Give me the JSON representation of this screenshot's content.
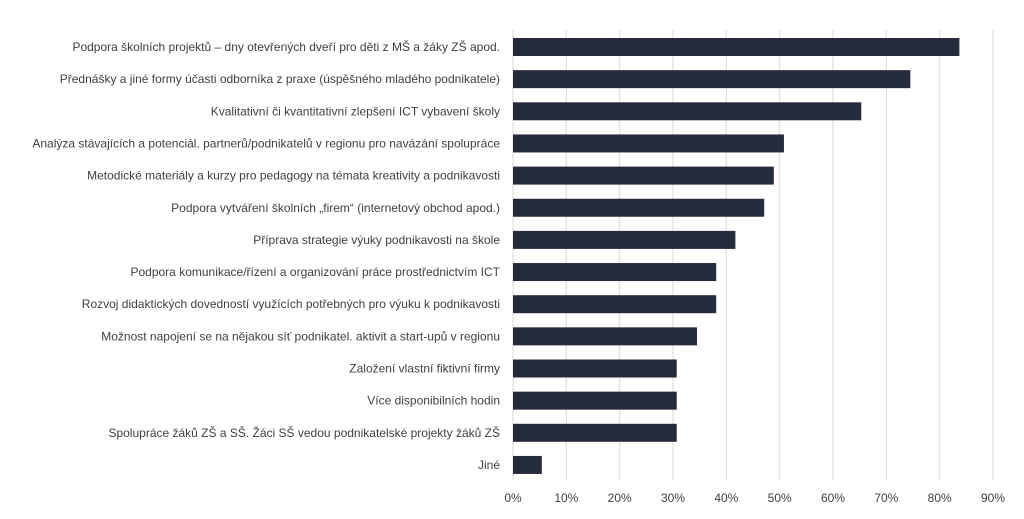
{
  "chart_data": {
    "type": "bar",
    "orientation": "horizontal",
    "title": "",
    "xlabel": "",
    "ylabel": "",
    "bar_color": "#252b3a",
    "grid_color": "#d9d9d9",
    "xlim": [
      0,
      90
    ],
    "x_ticks": [
      0,
      10,
      20,
      30,
      40,
      50,
      60,
      70,
      80,
      90
    ],
    "x_tick_labels": [
      "0%",
      "10%",
      "20%",
      "30%",
      "40%",
      "50%",
      "60%",
      "70%",
      "80%",
      "90%"
    ],
    "grid": true,
    "categories": [
      "Podpora školních projektů – dny otevřených dveří pro děti z MŠ a žáky ZŠ apod.",
      "Přednášky a jiné formy účasti odborníka z praxe (úspěšného mladého podnikatele)",
      "Kvalitativní či kvantitativní zlepšení ICT vybavení školy",
      "Analýza stávajících a potenciál. partnerů/podnikatelů v regionu pro navázání spolupráce",
      "Metodické materiály a kurzy pro pedagogy na témata kreativity a podnikavosti",
      "Podpora vytváření školních „firem“ (internetový obchod apod.)",
      "Příprava strategie výuky podnikavosti na škole",
      "Podpora komunikace/řízení a organizování práce prostřednictvím ICT",
      "Rozvoj didaktických dovedností využících potřebných pro výuku k podnikavosti",
      "Možnost napojení se na nějakou síť podnikatel. aktivit a start-upů v regionu",
      "Založení vlastní fiktivní firmy",
      "Více disponibilních hodin",
      "Spolupráce žáků ZŠ a SŠ. Žáci SŠ vedou podnikatelské projekty žáků ZŠ",
      "Jiné"
    ],
    "values": [
      83.7,
      74.5,
      65.3,
      50.8,
      48.9,
      47.1,
      41.7,
      38.1,
      38.1,
      34.5,
      30.7,
      30.7,
      30.7,
      5.4
    ]
  }
}
